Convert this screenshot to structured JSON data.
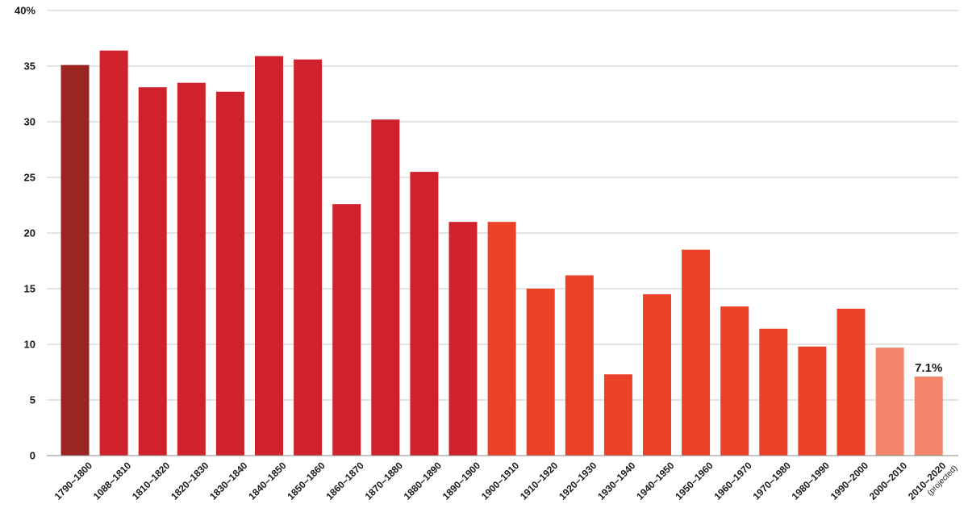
{
  "chart_data": {
    "type": "bar",
    "title": "",
    "xlabel": "",
    "ylabel": "",
    "ylim": [
      0,
      40
    ],
    "y_ticks": [
      "0",
      "5",
      "10",
      "15",
      "20",
      "25",
      "30",
      "35",
      "40%"
    ],
    "grid": true,
    "legend": "none",
    "categories": [
      "1790–1800",
      "1088–1810",
      "1810–1820",
      "1820–1830",
      "1830–1840",
      "1840–1850",
      "1850–1860",
      "1860–1870",
      "1870–1880",
      "1880–1890",
      "1890–1900",
      "1900–1910",
      "1910–1920",
      "1920–1930",
      "1930–1940",
      "1940–1950",
      "1950–1960",
      "1960–1970",
      "1970–1980",
      "1980–1990",
      "1990–2000",
      "2000–2010",
      "2010–2020"
    ],
    "category_notes": [
      "",
      "",
      "",
      "",
      "",
      "",
      "",
      "",
      "",
      "",
      "",
      "",
      "",
      "",
      "",
      "",
      "",
      "",
      "",
      "",
      "",
      "",
      "(projected)"
    ],
    "values": [
      35.1,
      36.4,
      33.1,
      33.5,
      32.7,
      35.9,
      35.6,
      22.6,
      30.2,
      25.5,
      21.0,
      21.0,
      15.0,
      16.2,
      7.3,
      14.5,
      18.5,
      13.4,
      11.4,
      9.8,
      13.2,
      9.7,
      7.1
    ],
    "bar_colors": [
      "#9b2521",
      "#d0222d",
      "#d0222d",
      "#d0222d",
      "#d0222d",
      "#d0222d",
      "#d0222d",
      "#d0222d",
      "#d0222d",
      "#d0222d",
      "#d0222d",
      "#ea4127",
      "#ea4127",
      "#ea4127",
      "#ea4127",
      "#ea4127",
      "#ea4127",
      "#ea4127",
      "#ea4127",
      "#ea4127",
      "#ea4127",
      "#f2856a",
      "#f2856a"
    ],
    "data_labels": [
      {
        "index": 22,
        "text": "7.1%"
      }
    ]
  }
}
